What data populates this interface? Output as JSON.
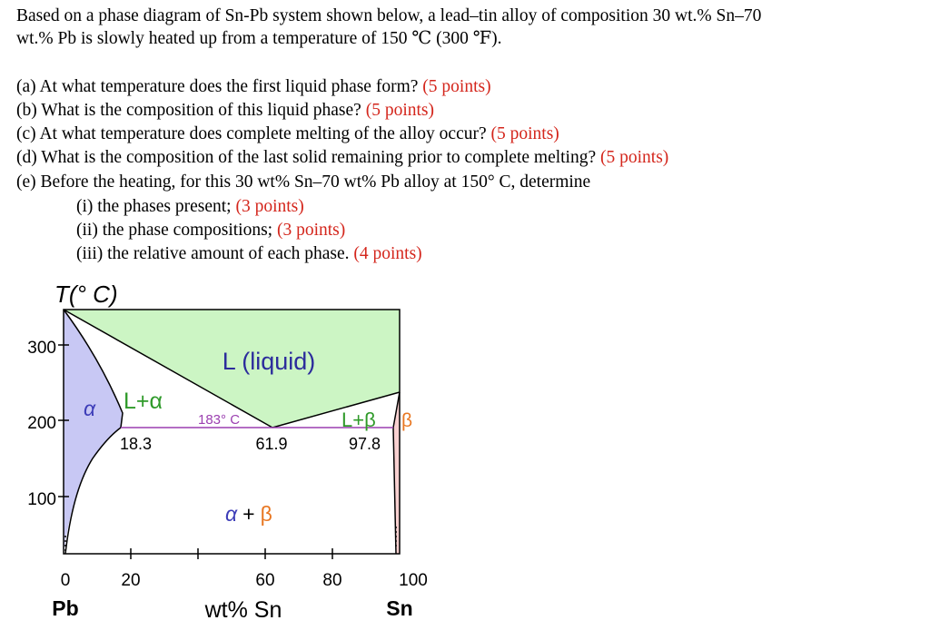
{
  "problem": {
    "intro_line1": "Based on a phase diagram of Sn-Pb system shown below, a lead–tin alloy of composition 30 wt.% Sn–70",
    "intro_line2": "wt.% Pb is slowly heated up from a temperature of 150 ℃ (300 ℉).",
    "questions": [
      {
        "text": "(a) At what temperature does the first liquid phase form?",
        "points": "(5 points)"
      },
      {
        "text": "(b) What is the composition of this liquid phase?",
        "points": "(5 points)"
      },
      {
        "text": "(c) At what temperature does complete melting of the alloy occur?",
        "points": "(5 points)"
      },
      {
        "text": "(d) What is the composition of the last solid remaining prior to complete melting?",
        "points": "(5 points)"
      },
      {
        "text": "(e) Before the heating, for this 30 wt% Sn–70 wt% Pb alloy at 150° C, determine",
        "points": ""
      }
    ],
    "sub_questions": [
      {
        "text": "(i) the phases present;",
        "points": "(3 points)"
      },
      {
        "text": "(ii) the phase compositions;",
        "points": "(3 points)"
      },
      {
        "text": "(iii) the relative amount of each phase.",
        "points": "(4 points)"
      }
    ]
  },
  "diagram": {
    "y_axis_title": "T(° C)",
    "y_ticks": [
      "300",
      "200",
      "100"
    ],
    "x_ticks": [
      "0",
      "20",
      "60",
      "80",
      "100"
    ],
    "x_axis_title": "wt% Sn",
    "left_element": "Pb",
    "right_element": "Sn",
    "labels": {
      "liquid": "L (liquid)",
      "alpha": "α",
      "l_plus_alpha": "L+α",
      "eutectic_temp": "183° C",
      "comp_alpha": "18.3",
      "comp_eutectic": "61.9",
      "comp_beta": "97.8",
      "l_plus_beta": "L+β",
      "beta": "β",
      "alpha_plus_beta_alpha": "α",
      "alpha_plus_beta_plus": "+",
      "alpha_plus_beta_beta": "β"
    },
    "colors": {
      "liquid_region": "#ccf5c4",
      "alpha_region": "#c8c8f4",
      "beta_region": "#f8d0d0",
      "alpha_text": "#3d3db8",
      "liquid_text": "#2f9a2a",
      "beta_text": "#e87722",
      "eutectic_line": "#9b3fb0"
    }
  }
}
